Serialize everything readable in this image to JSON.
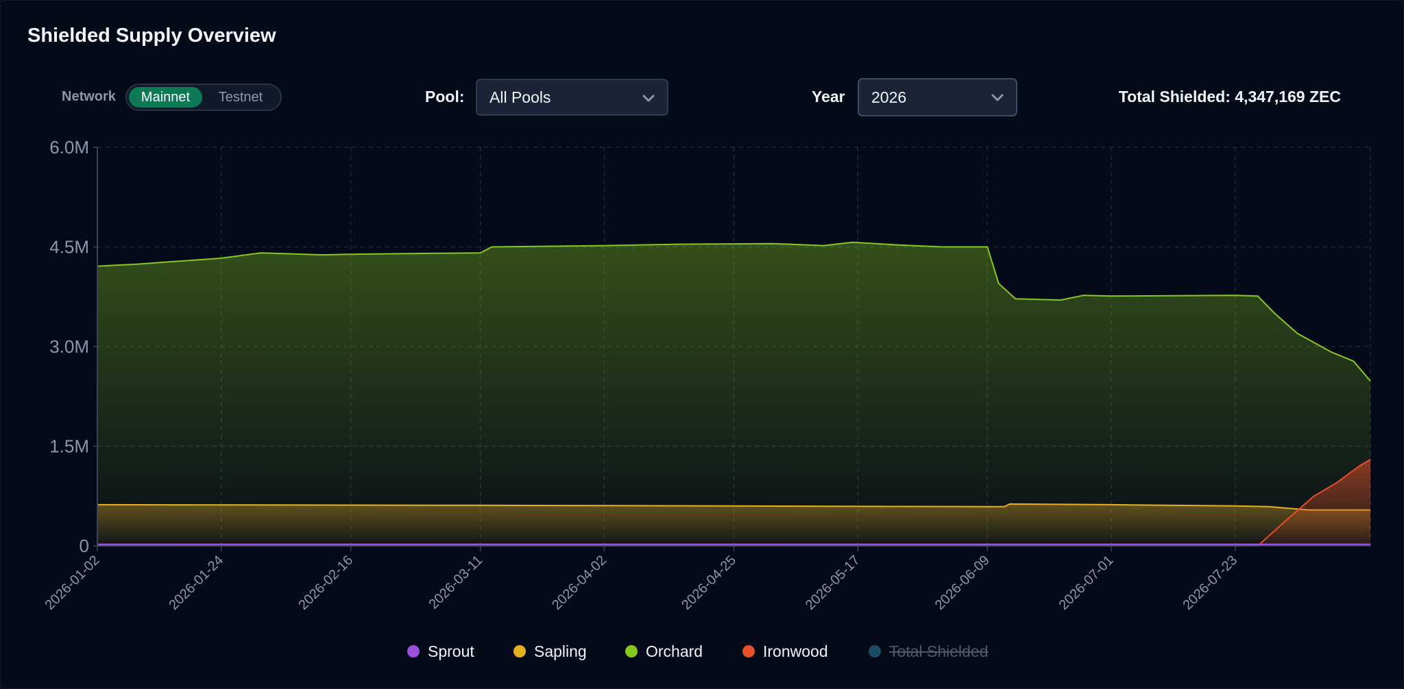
{
  "header": {
    "title": "Shielded Supply Overview"
  },
  "controls": {
    "network_label": "Network",
    "network_options": [
      "Mainnet",
      "Testnet"
    ],
    "network_selected": "Mainnet",
    "pool_label": "Pool:",
    "pool_value": "All Pools",
    "year_label": "Year",
    "year_value": "2026",
    "total_text": "Total Shielded: 4,347,169 ZEC"
  },
  "colors": {
    "background": "#050a18",
    "accent": "#0d7a55",
    "sprout": "#9b4fe0",
    "sapling": "#e8b020",
    "orchard": "#86c91e",
    "ironwood": "#e8502a",
    "total_shielded": "#1b4d66"
  },
  "chart_data": {
    "type": "area",
    "xlabel": "",
    "ylabel": "",
    "ylim": [
      0,
      6000000
    ],
    "y_ticks": [
      0,
      1500000,
      3000000,
      4500000,
      6000000
    ],
    "y_tick_labels": [
      "0",
      "1.5M",
      "3.0M",
      "4.5M",
      "6.0M"
    ],
    "x_range": [
      "2026-01-02",
      "2026-08-16"
    ],
    "x_ticks": [
      "2026-01-02",
      "2026-01-24",
      "2026-02-16",
      "2026-03-11",
      "2026-04-02",
      "2026-04-25",
      "2026-05-17",
      "2026-06-09",
      "2026-07-01",
      "2026-07-23"
    ],
    "grid": true,
    "legend_position": "bottom",
    "series": [
      {
        "name": "Sprout",
        "points": [
          [
            "2026-01-02",
            20000
          ],
          [
            "2026-08-16",
            20000
          ]
        ]
      },
      {
        "name": "Sapling",
        "points": [
          [
            "2026-01-02",
            620000
          ],
          [
            "2026-03-11",
            610000
          ],
          [
            "2026-04-25",
            600000
          ],
          [
            "2026-06-09",
            590000
          ],
          [
            "2026-06-12",
            590000
          ],
          [
            "2026-06-13",
            630000
          ],
          [
            "2026-07-01",
            620000
          ],
          [
            "2026-07-23",
            600000
          ],
          [
            "2026-07-29",
            590000
          ],
          [
            "2026-08-05",
            540000
          ],
          [
            "2026-08-16",
            540000
          ]
        ]
      },
      {
        "name": "Orchard",
        "points": [
          [
            "2026-01-02",
            4210000
          ],
          [
            "2026-01-09",
            4240000
          ],
          [
            "2026-01-14",
            4270000
          ],
          [
            "2026-01-24",
            4330000
          ],
          [
            "2026-01-31",
            4410000
          ],
          [
            "2026-02-11",
            4380000
          ],
          [
            "2026-02-16",
            4390000
          ],
          [
            "2026-02-26",
            4400000
          ],
          [
            "2026-03-11",
            4410000
          ],
          [
            "2026-03-13",
            4500000
          ],
          [
            "2026-04-02",
            4520000
          ],
          [
            "2026-04-15",
            4540000
          ],
          [
            "2026-05-02",
            4550000
          ],
          [
            "2026-05-11",
            4520000
          ],
          [
            "2026-05-16",
            4570000
          ],
          [
            "2026-05-24",
            4530000
          ],
          [
            "2026-06-01",
            4500000
          ],
          [
            "2026-06-09",
            4500000
          ],
          [
            "2026-06-11",
            3950000
          ],
          [
            "2026-06-14",
            3720000
          ],
          [
            "2026-06-22",
            3700000
          ],
          [
            "2026-06-26",
            3770000
          ],
          [
            "2026-07-01",
            3760000
          ],
          [
            "2026-07-23",
            3770000
          ],
          [
            "2026-07-27",
            3760000
          ],
          [
            "2026-07-30",
            3500000
          ],
          [
            "2026-08-03",
            3200000
          ],
          [
            "2026-08-09",
            2920000
          ],
          [
            "2026-08-13",
            2780000
          ],
          [
            "2026-08-16",
            2480000
          ]
        ]
      },
      {
        "name": "Ironwood",
        "points": [
          [
            "2026-01-02",
            0
          ],
          [
            "2026-07-27",
            0
          ],
          [
            "2026-08-01",
            380000
          ],
          [
            "2026-08-06",
            750000
          ],
          [
            "2026-08-10",
            950000
          ],
          [
            "2026-08-14",
            1200000
          ],
          [
            "2026-08-16",
            1300000
          ]
        ]
      },
      {
        "name": "Total Shielded",
        "hidden": true,
        "points": []
      }
    ]
  }
}
